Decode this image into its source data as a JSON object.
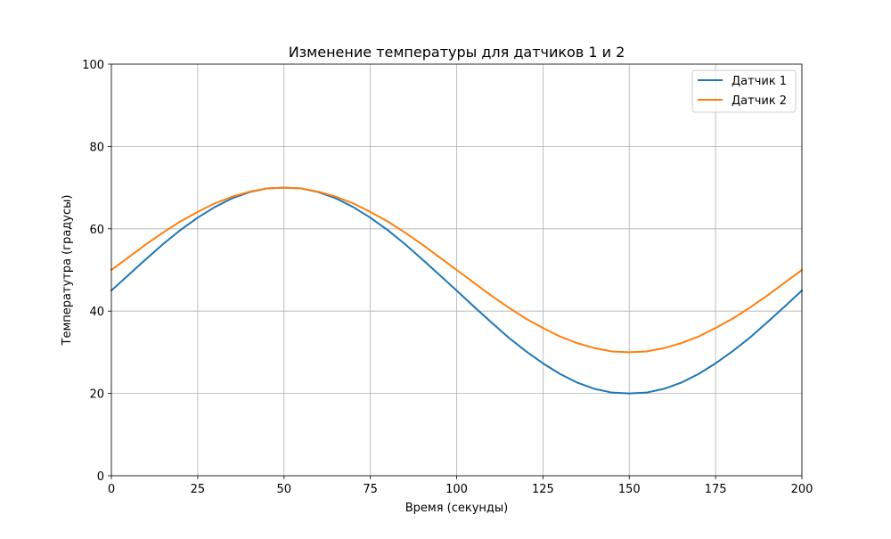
{
  "chart_data": {
    "type": "line",
    "title": "Изменение температуры для датчиков 1 и 2",
    "xlabel": "Время (секунды)",
    "ylabel": "Температутра (градусы)",
    "xlim": [
      0,
      200
    ],
    "ylim": [
      0,
      100
    ],
    "xticks": [
      0,
      25,
      50,
      75,
      100,
      125,
      150,
      175,
      200
    ],
    "yticks": [
      0,
      20,
      40,
      60,
      80,
      100
    ],
    "grid": true,
    "legend_position": "top-right",
    "x": [
      0,
      5,
      10,
      15,
      20,
      25,
      30,
      35,
      40,
      45,
      50,
      55,
      60,
      65,
      70,
      75,
      80,
      85,
      90,
      95,
      100,
      105,
      110,
      115,
      120,
      125,
      130,
      135,
      140,
      145,
      150,
      155,
      160,
      165,
      170,
      175,
      180,
      185,
      190,
      195,
      200
    ],
    "series": [
      {
        "name": "Датчик 1",
        "color": "#1f77b4",
        "values": [
          45.0,
          48.8,
          52.6,
          56.3,
          59.7,
          62.7,
          65.3,
          67.4,
          68.9,
          69.8,
          70.0,
          69.8,
          68.9,
          67.4,
          65.3,
          62.7,
          59.7,
          56.3,
          52.6,
          48.8,
          45.0,
          41.1,
          37.3,
          33.6,
          30.3,
          27.3,
          24.7,
          22.6,
          21.1,
          20.2,
          20.0,
          20.2,
          21.1,
          22.6,
          24.7,
          27.3,
          30.3,
          33.6,
          37.3,
          41.1,
          45.0
        ]
      },
      {
        "name": "Датчик 2",
        "color": "#ff7f0e",
        "values": [
          50.0,
          53.1,
          56.2,
          59.1,
          61.8,
          64.1,
          66.2,
          67.8,
          69.0,
          69.8,
          70.0,
          69.8,
          69.0,
          67.8,
          66.2,
          64.1,
          61.8,
          59.1,
          56.2,
          53.1,
          50.0,
          46.9,
          43.8,
          40.9,
          38.2,
          35.9,
          33.8,
          32.2,
          31.0,
          30.2,
          30.0,
          30.2,
          31.0,
          32.2,
          33.8,
          35.9,
          38.2,
          40.9,
          43.8,
          46.9,
          50.0
        ]
      }
    ]
  }
}
